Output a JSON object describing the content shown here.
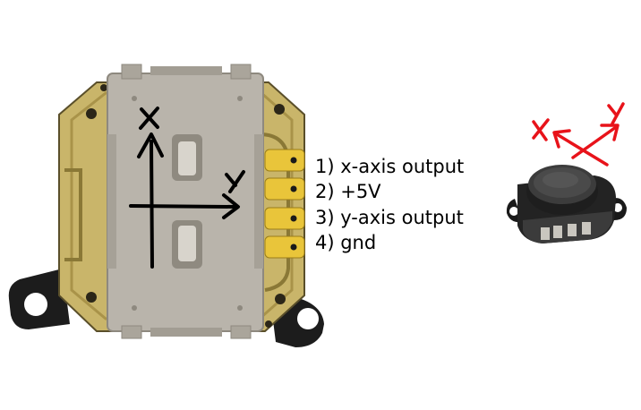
{
  "pin_labels": [
    "1) x-axis output",
    "2) +5V",
    "3) y-axis output",
    "4) gnd"
  ],
  "main_axes": {
    "x_label": "x",
    "y_label": "y",
    "color": "#000000"
  },
  "small_axes": {
    "x_label": "x",
    "y_label": "y",
    "color": "#e8131a"
  },
  "colors": {
    "pcb": "#c9b56a",
    "pcb_dark": "#3a3320",
    "shield": "#b9b4ab",
    "shield_edge": "#8e897f",
    "bracket": "#1c1c1c",
    "pad": "#e9c53a",
    "stick": "#2a2a2a"
  }
}
